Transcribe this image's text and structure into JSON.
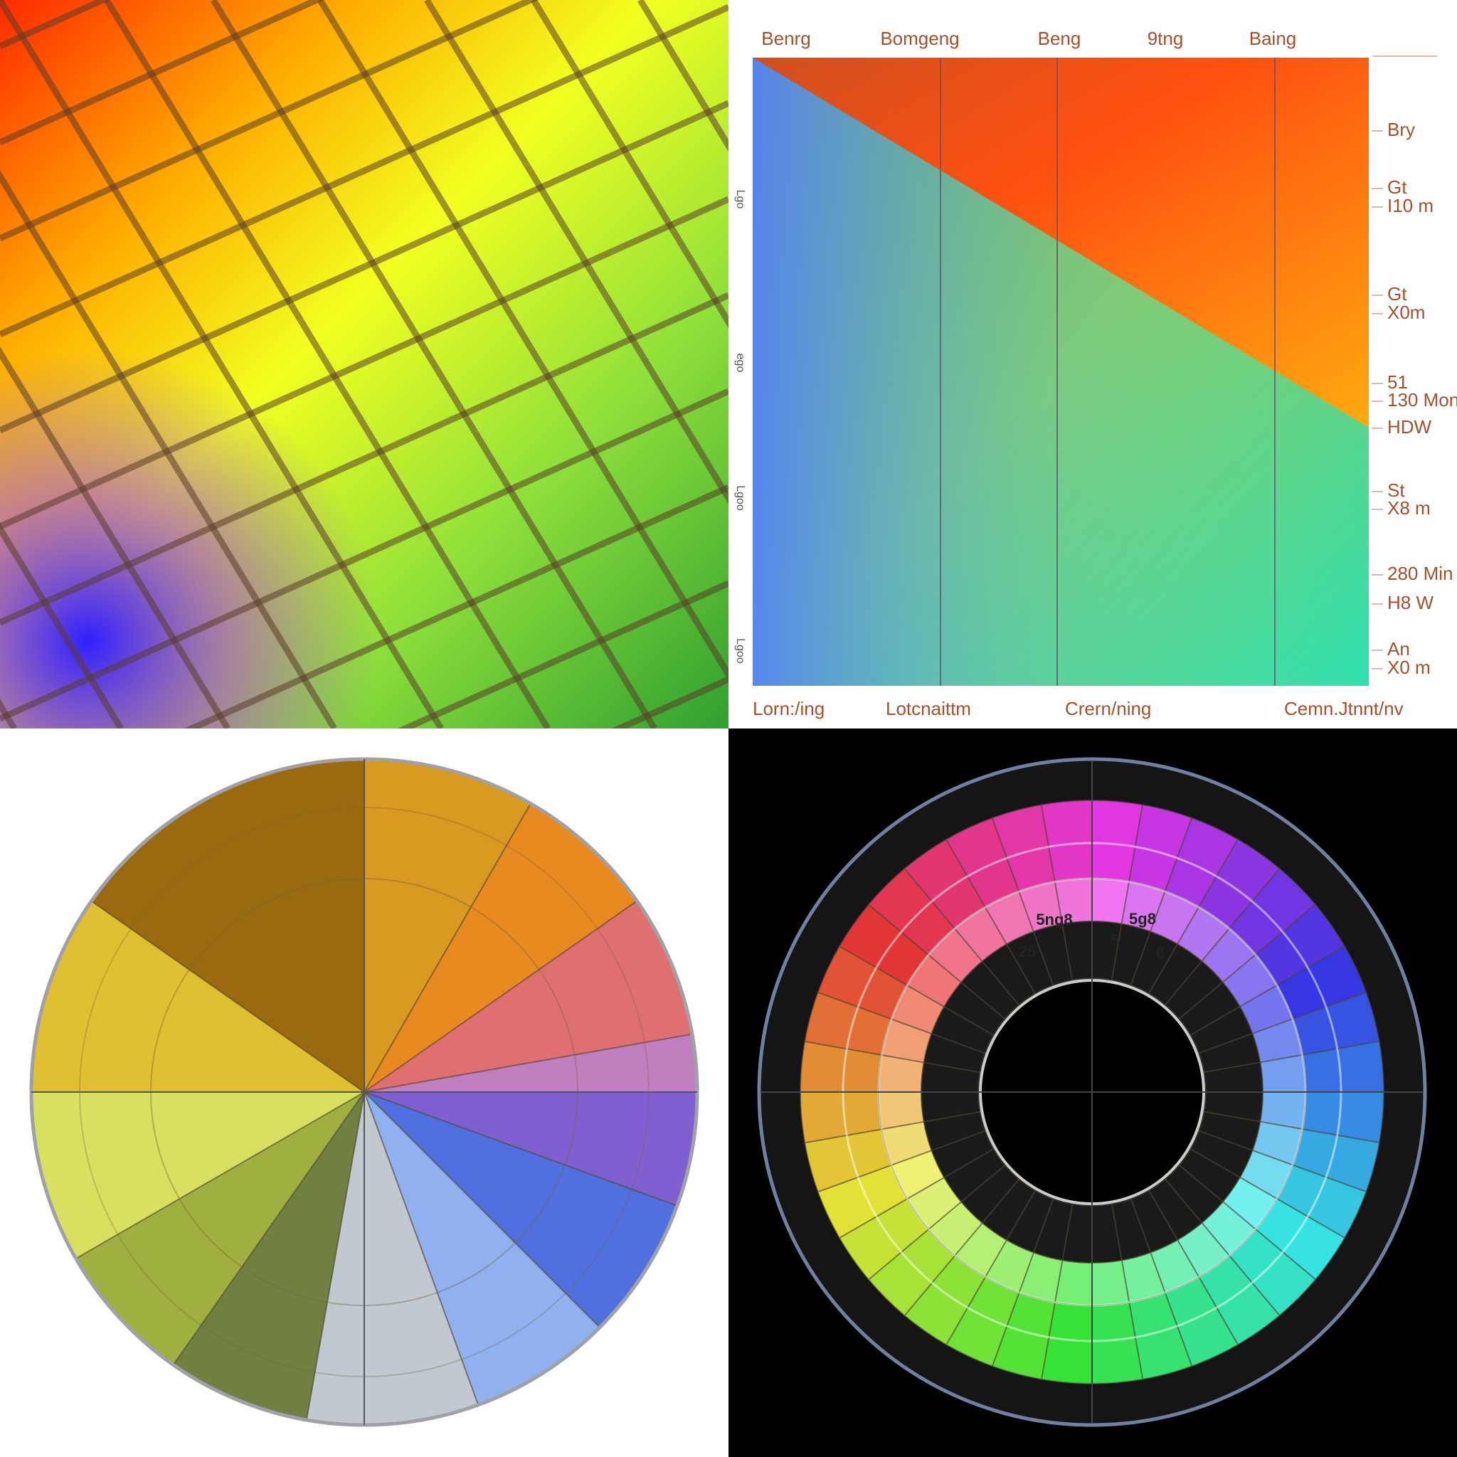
{
  "gradient_chart": {
    "top_labels": [
      "Benrg",
      "Bomgeng",
      "Beng",
      "9tng",
      "Baing"
    ],
    "right_labels": [
      "Bry",
      "Gt",
      "I10 m",
      "Gt",
      "X0m",
      "51",
      "130 Mon",
      "HDW",
      "St",
      "X8 m",
      "280 Min",
      "H8 W",
      "An",
      "X0 m"
    ],
    "left_labels": [
      "Lgo",
      "ego",
      "Lgoo",
      "Lgoo"
    ],
    "bottom_labels": [
      "Lorn:/ing",
      "Lotcnaittm",
      "Crern/ning",
      "Cemn.Jtnnt/nv"
    ]
  },
  "dial": {
    "labels": [
      "5ng8",
      "5g8",
      "25",
      "5",
      "6"
    ]
  }
}
